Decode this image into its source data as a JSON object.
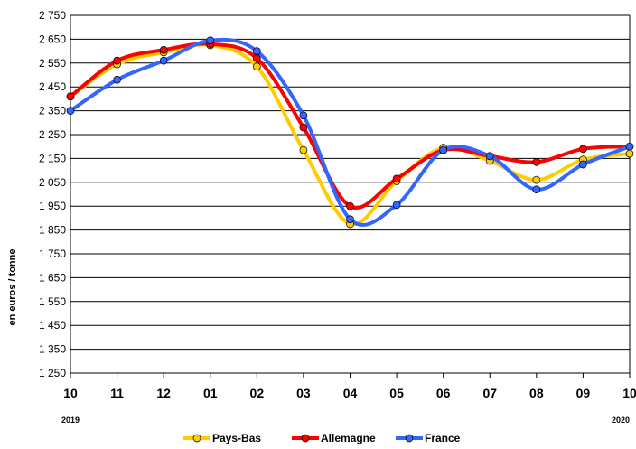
{
  "chart_data": {
    "type": "line",
    "ylabel": "en euros / tonne",
    "xlabel": "",
    "categories": [
      "10",
      "11",
      "12",
      "01",
      "02",
      "03",
      "04",
      "05",
      "06",
      "07",
      "08",
      "09",
      "10"
    ],
    "year_labels": [
      {
        "category_index": 0,
        "text": "2019"
      },
      {
        "category_index": 12,
        "text": "2020"
      }
    ],
    "ylim": [
      1250,
      2750
    ],
    "yticks": [
      1250,
      1350,
      1450,
      1550,
      1650,
      1750,
      1850,
      1950,
      2050,
      2150,
      2250,
      2350,
      2450,
      2550,
      2650,
      2750
    ],
    "ytick_labels": [
      "1 250",
      "1 350",
      "1 450",
      "1 550",
      "1 650",
      "1 750",
      "1 850",
      "1 950",
      "2 050",
      "2 150",
      "2 250",
      "2 350",
      "2 450",
      "2 550",
      "2 650",
      "2 750"
    ],
    "grid": true,
    "legend_position": "bottom",
    "series": [
      {
        "name": "Pays-Bas",
        "color": "#FFCC00",
        "values": [
          2410,
          2545,
          2595,
          2625,
          2535,
          2185,
          1875,
          2055,
          2195,
          2140,
          2060,
          2145,
          2170
        ]
      },
      {
        "name": "Allemagne",
        "color": "#FF0000",
        "values": [
          2410,
          2560,
          2605,
          2630,
          2570,
          2280,
          1950,
          2065,
          2185,
          2160,
          2135,
          2190,
          2200
        ]
      },
      {
        "name": "France",
        "color": "#3366FF",
        "values": [
          2350,
          2480,
          2560,
          2645,
          2600,
          2330,
          1895,
          1955,
          2185,
          2160,
          2020,
          2125,
          2200
        ]
      }
    ]
  }
}
